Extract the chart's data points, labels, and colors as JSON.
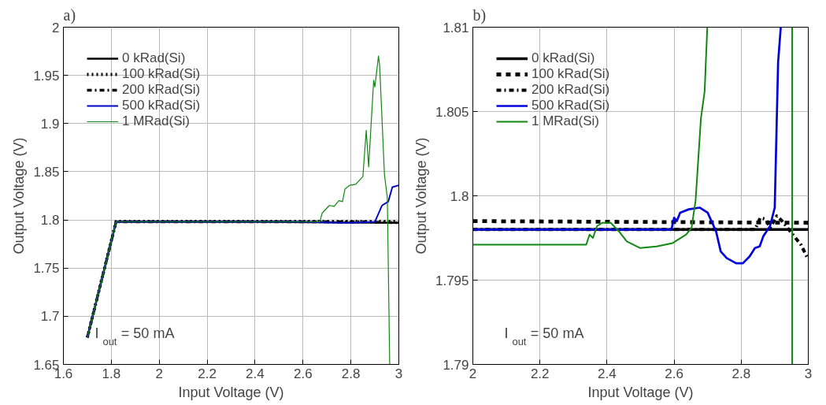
{
  "chart_data": [
    {
      "type": "line",
      "title": "a)",
      "xlabel": "Input Voltage (V)",
      "ylabel": "Output Voltage (V)",
      "xlim": [
        1.6,
        3
      ],
      "ylim": [
        1.65,
        2
      ],
      "xticks": [
        1.6,
        1.8,
        2,
        2.2,
        2.4,
        2.6,
        2.8,
        3
      ],
      "yticks": [
        1.65,
        1.7,
        1.75,
        1.8,
        1.85,
        1.9,
        1.95,
        2
      ],
      "grid": true,
      "legend": "top left",
      "annotations": [
        "I$_{out}$ = 50 mA"
      ],
      "series": [
        {
          "name": "0 kRad(Si)",
          "color": "#000000",
          "line_style": "solid",
          "x": [
            1.7,
            1.82,
            2.4,
            3.0
          ],
          "values": [
            1.678,
            1.798,
            1.798,
            1.797
          ]
        },
        {
          "name": "100 kRad(Si)",
          "color": "#000000",
          "line_style": "dotted",
          "x": [
            1.7,
            1.82,
            3.0
          ],
          "values": [
            1.678,
            1.7985,
            1.7985
          ]
        },
        {
          "name": "200 kRad(Si)",
          "color": "#000000",
          "line_style": "dashdot",
          "x": [
            1.7,
            1.82,
            2.85,
            3.0
          ],
          "values": [
            1.678,
            1.798,
            1.798,
            1.797
          ]
        },
        {
          "name": "500 kRad(Si)",
          "color": "#0000cc",
          "line_style": "solid",
          "x": [
            1.7,
            1.82,
            2.6,
            2.75,
            2.8,
            2.9,
            2.93,
            2.956,
            2.973,
            3.0
          ],
          "values": [
            1.678,
            1.798,
            1.798,
            1.797,
            1.797,
            1.798,
            1.815,
            1.819,
            1.834,
            1.836
          ]
        },
        {
          "name": "1 MRad(Si)",
          "color": "#118811",
          "line_style": "solid",
          "x": [
            1.7,
            1.82,
            2.67,
            2.68,
            2.71,
            2.73,
            2.75,
            2.765,
            2.775,
            2.795,
            2.82,
            2.85,
            2.864,
            2.874,
            2.895,
            2.9,
            2.915,
            2.92,
            2.94,
            2.952,
            2.962
          ],
          "values": [
            1.678,
            1.798,
            1.798,
            1.807,
            1.815,
            1.814,
            1.82,
            1.819,
            1.832,
            1.836,
            1.837,
            1.845,
            1.893,
            1.855,
            1.945,
            1.938,
            1.97,
            1.96,
            1.847,
            1.823,
            1.65
          ]
        }
      ]
    },
    {
      "type": "line",
      "title": "b)",
      "xlabel": "Input Voltage (V)",
      "ylabel": "Output Voltage (V)",
      "xlim": [
        2,
        3
      ],
      "ylim": [
        1.79,
        1.81
      ],
      "xticks": [
        2,
        2.2,
        2.4,
        2.6,
        2.8,
        3
      ],
      "yticks": [
        1.79,
        1.795,
        1.8,
        1.805,
        1.81
      ],
      "grid": true,
      "legend": "top left",
      "annotations": [
        "I$_{out}$ = 50 mA"
      ],
      "series": [
        {
          "name": "0 kRad(Si)",
          "color": "#000000",
          "line_style": "solid",
          "x": [
            2.0,
            3.0
          ],
          "values": [
            1.798,
            1.798
          ]
        },
        {
          "name": "100 kRad(Si)",
          "color": "#000000",
          "line_style": "dashed",
          "x": [
            2.0,
            3.0
          ],
          "values": [
            1.7985,
            1.7984
          ]
        },
        {
          "name": "200 kRad(Si)",
          "color": "#000000",
          "line_style": "dashdot",
          "x": [
            2.0,
            2.841,
            2.857,
            2.874,
            2.886,
            2.906,
            2.922,
            2.946,
            2.978,
            2.998
          ],
          "values": [
            1.798,
            1.798,
            1.7987,
            1.7986,
            1.7981,
            1.7988,
            1.7985,
            1.7979,
            1.7971,
            1.7963
          ]
        },
        {
          "name": "500 kRad(Si)",
          "color": "#0000dd",
          "line_style": "solid",
          "x": [
            2.0,
            2.592,
            2.6,
            2.608,
            2.618,
            2.644,
            2.676,
            2.7,
            2.725,
            2.739,
            2.757,
            2.785,
            2.805,
            2.825,
            2.841,
            2.855,
            2.866,
            2.886,
            2.9,
            2.91,
            2.918
          ],
          "values": [
            1.798,
            1.798,
            1.7987,
            1.7985,
            1.799,
            1.7992,
            1.7993,
            1.799,
            1.7979,
            1.7967,
            1.7963,
            1.796,
            1.796,
            1.7964,
            1.7969,
            1.797,
            1.7976,
            1.7982,
            1.7993,
            1.8079,
            1.81
          ]
        },
        {
          "name": "1 MRad(Si)",
          "color": "#118811",
          "line_style": "solid",
          "x": [
            2.0,
            2.338,
            2.348,
            2.358,
            2.37,
            2.386,
            2.411,
            2.435,
            2.459,
            2.499,
            2.548,
            2.596,
            2.636,
            2.652,
            2.664,
            2.68,
            2.691,
            2.699,
            2.8,
            2.952,
            2.952
          ],
          "values": [
            1.7971,
            1.7971,
            1.7977,
            1.7975,
            1.7982,
            1.7984,
            1.7984,
            1.7979,
            1.7973,
            1.7969,
            1.797,
            1.7972,
            1.7977,
            1.7981,
            1.7997,
            1.8046,
            1.8062,
            1.81,
            null,
            1.81,
            1.79
          ]
        }
      ]
    }
  ]
}
